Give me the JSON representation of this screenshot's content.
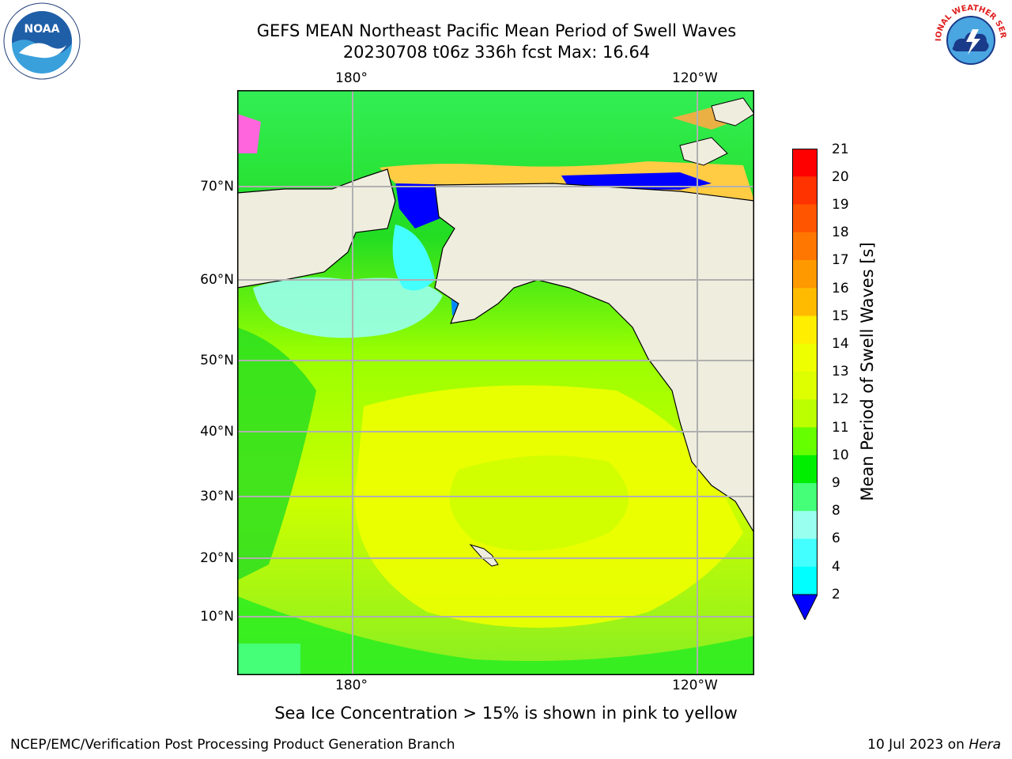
{
  "title_line1": "GEFS MEAN Northeast Pacific Mean Period of Swell Waves",
  "title_line2": "20230708 t06z 336h fcst   Max: 16.64",
  "map": {
    "top_lon_labels": [
      "180°",
      "120°W"
    ],
    "bottom_lon_labels": [
      "180°",
      "120°W"
    ],
    "lat_labels": [
      "70°N",
      "60°N",
      "50°N",
      "40°N",
      "30°N",
      "20°N",
      "10°N"
    ],
    "land_color": "#efedde",
    "gridline_color": "#b0b0b0"
  },
  "colorbar": {
    "title": "Mean Period of Swell Waves [s]",
    "ticks": [
      "21",
      "20",
      "19",
      "18",
      "17",
      "16",
      "15",
      "14",
      "13",
      "12",
      "11",
      "10",
      "9",
      "8",
      "6",
      "4",
      "2"
    ],
    "colors": [
      "#ff0000",
      "#ff3300",
      "#ff5500",
      "#ff7700",
      "#ff9900",
      "#ffbb00",
      "#ffee00",
      "#eeff00",
      "#ddff00",
      "#bbff00",
      "#66ff00",
      "#00ee00",
      "#44ff77",
      "#99ffee",
      "#44ffff",
      "#00ffff",
      "#0088ff"
    ],
    "underflow_color": "#0000ff"
  },
  "footnote": "Sea Ice Concentration > 15% is shown in pink to yellow",
  "credit_left": "NCEP/EMC/Verification Post Processing Product Generation Branch",
  "credit_right_date": "10 Jul 2023 on ",
  "credit_right_machine": "Hera",
  "logos": {
    "left": "NOAA",
    "right": "NATIONAL WEATHER SERVICE"
  }
}
